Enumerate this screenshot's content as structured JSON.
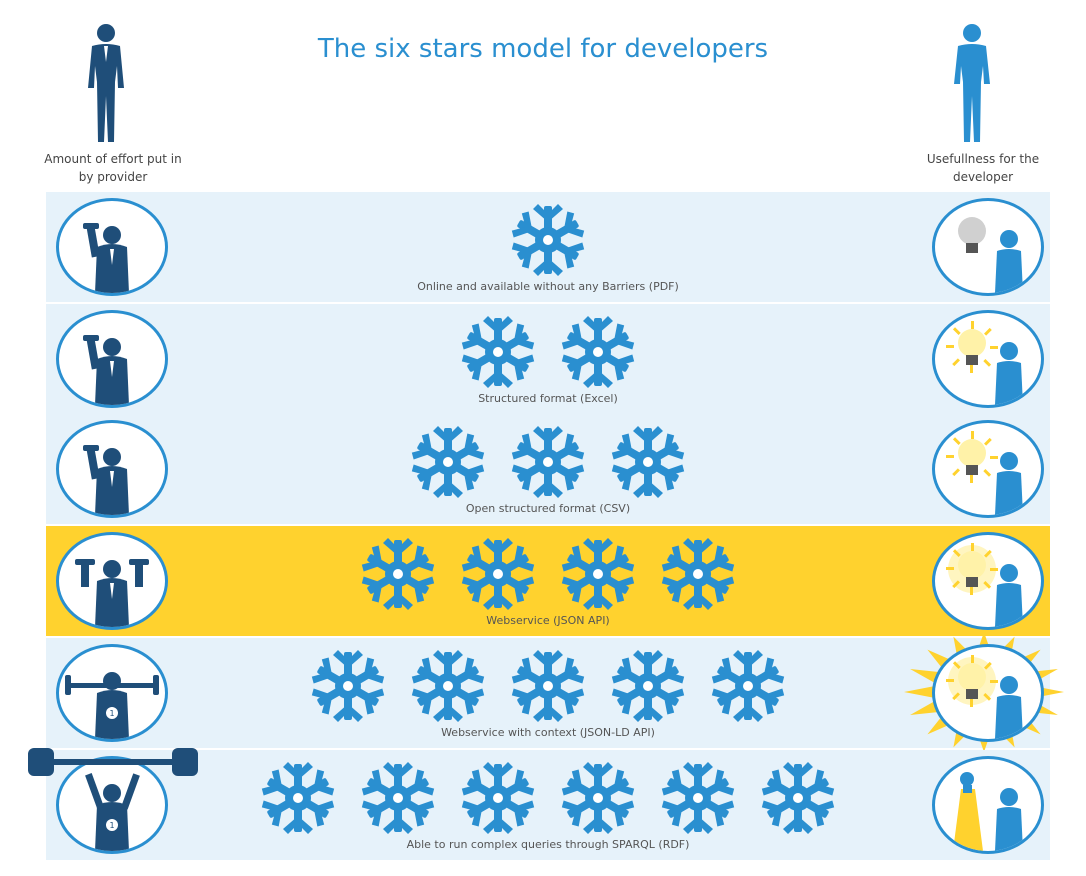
{
  "title": "The six stars model for developers",
  "left_label": "Amount of effort put in by provider",
  "right_label": "Usefullness for the developer",
  "colors": {
    "accent": "#2a8fd0",
    "navy": "#1f4e79",
    "row_background": "#e6f2fa",
    "highlight": "#ffd22e",
    "bulb_off": "#d0d0d0",
    "bulb_on": "#fff2a8"
  },
  "levels": [
    {
      "stars": 1,
      "label": "Online and available without any Barriers (PDF)",
      "highlighted": false,
      "bulb": "off"
    },
    {
      "stars": 2,
      "label": "Structured format (Excel)",
      "highlighted": false,
      "bulb": "dim"
    },
    {
      "stars": 3,
      "label": "Open structured format (CSV)",
      "highlighted": false,
      "bulb": "dim"
    },
    {
      "stars": 4,
      "label": "Webservice (JSON API)",
      "highlighted": true,
      "bulb": "bright"
    },
    {
      "stars": 5,
      "label": "Webservice with context (JSON-LD API)",
      "highlighted": false,
      "bulb": "brighter"
    },
    {
      "stars": 6,
      "label": "Able to run complex queries through SPARQL (RDF)",
      "highlighted": false,
      "bulb": "spotlight"
    }
  ],
  "icons": {
    "star": "snowflake-star-icon",
    "effort": "weightlifter-icon",
    "usefulness": "developer-lightbulb-icon"
  }
}
